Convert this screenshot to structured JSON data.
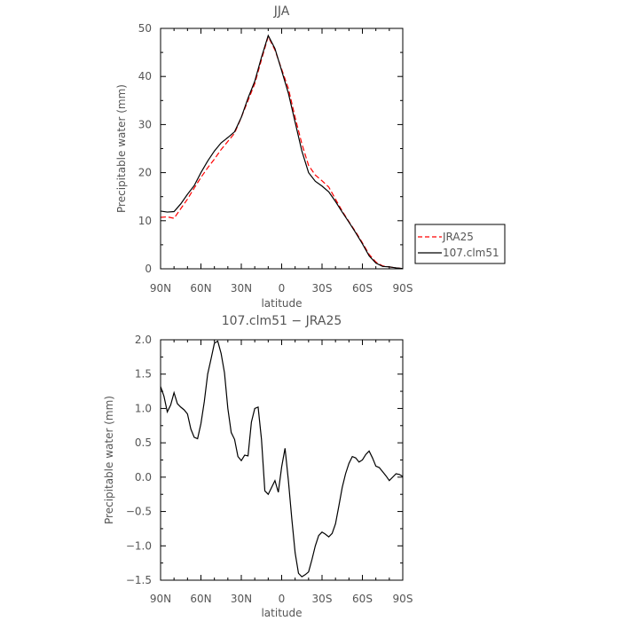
{
  "chart_data": [
    {
      "type": "line",
      "title": "JJA",
      "xlabel": "latitude",
      "ylabel": "Precipitable water (mm)",
      "xlim": [
        90,
        -90
      ],
      "ylim": [
        0,
        50
      ],
      "x_ticks": [
        90,
        60,
        30,
        0,
        -30,
        -60,
        -90
      ],
      "x_tick_labels": [
        "90N",
        "60N",
        "30N",
        "0",
        "30S",
        "60S",
        "90S"
      ],
      "y_ticks": [
        0,
        10,
        20,
        30,
        40,
        50
      ],
      "y_tick_labels": [
        "0",
        "10",
        "20",
        "30",
        "40",
        "50"
      ],
      "legend": {
        "placement": "right-outside"
      },
      "series": [
        {
          "name": "JRA25",
          "color": "#ff0000",
          "dash": "dashed",
          "x": [
            90,
            85,
            80,
            75,
            70,
            65,
            60,
            55,
            50,
            45,
            40,
            35,
            30,
            25,
            20,
            15,
            10,
            5,
            0,
            -5,
            -10,
            -15,
            -20,
            -25,
            -30,
            -35,
            -40,
            -45,
            -50,
            -55,
            -60,
            -65,
            -70,
            -75,
            -80,
            -85,
            -90
          ],
          "y": [
            10.7,
            10.8,
            10.5,
            12.5,
            14.5,
            16.8,
            19.0,
            21.0,
            22.8,
            24.8,
            26.5,
            28.2,
            31.5,
            35.0,
            38.5,
            43.5,
            48.3,
            45.5,
            41.5,
            37.5,
            31.5,
            26.0,
            21.5,
            19.5,
            18.3,
            17.0,
            14.5,
            12.0,
            9.8,
            7.7,
            5.4,
            3.0,
            1.4,
            0.6,
            0.4,
            0.2,
            0.05
          ]
        },
        {
          "name": "107.clm51",
          "color": "#000000",
          "dash": "solid",
          "x": [
            90,
            85,
            80,
            75,
            70,
            65,
            60,
            55,
            50,
            45,
            40,
            35,
            30,
            25,
            20,
            15,
            10,
            5,
            0,
            -5,
            -10,
            -15,
            -20,
            -25,
            -30,
            -35,
            -40,
            -45,
            -50,
            -55,
            -60,
            -65,
            -70,
            -75,
            -80,
            -85,
            -90
          ],
          "y": [
            12.0,
            11.8,
            11.9,
            13.5,
            15.5,
            17.3,
            20.0,
            22.4,
            24.5,
            26.2,
            27.3,
            28.5,
            31.5,
            35.5,
            39.0,
            44.0,
            48.5,
            45.8,
            41.2,
            36.5,
            30.5,
            24.5,
            20.0,
            18.2,
            17.2,
            16.0,
            14.0,
            11.8,
            9.7,
            7.5,
            5.2,
            2.7,
            1.2,
            0.5,
            0.4,
            0.2,
            0.05
          ]
        }
      ]
    },
    {
      "type": "line",
      "title": "107.clm51 − JRA25",
      "xlabel": "latitude",
      "ylabel": "Precipitable water (mm)",
      "xlim": [
        90,
        -90
      ],
      "ylim": [
        -1.5,
        2.0
      ],
      "x_ticks": [
        90,
        60,
        30,
        0,
        -30,
        -60,
        -90
      ],
      "x_tick_labels": [
        "90N",
        "60N",
        "30N",
        "0",
        "30S",
        "60S",
        "90S"
      ],
      "y_ticks": [
        -1.5,
        -1.0,
        -0.5,
        0.0,
        0.5,
        1.0,
        1.5,
        2.0
      ],
      "y_tick_labels": [
        "−1.5",
        "−1.0",
        "−0.5",
        "0.0",
        "0.5",
        "1.0",
        "1.5",
        "2.0"
      ],
      "series": [
        {
          "color": "#000000",
          "dash": "solid",
          "x": [
            90,
            87.5,
            85,
            82.5,
            80,
            77.5,
            75,
            72.5,
            70,
            67.5,
            65,
            62.5,
            60,
            57.5,
            55,
            52.5,
            50,
            47.5,
            45,
            42.5,
            40,
            37.5,
            35,
            32.5,
            30,
            27.5,
            25,
            22.5,
            20,
            17.5,
            15,
            12.5,
            10,
            7.5,
            5,
            2.5,
            0,
            -2.5,
            -5,
            -7.5,
            -10,
            -12.5,
            -15,
            -17.5,
            -20,
            -22.5,
            -25,
            -27.5,
            -30,
            -32.5,
            -35,
            -37.5,
            -40,
            -42.5,
            -45,
            -47.5,
            -50,
            -52.5,
            -55,
            -57.5,
            -60,
            -62.5,
            -65,
            -67.5,
            -70,
            -72.5,
            -75,
            -77.5,
            -80,
            -82.5,
            -85,
            -87.5,
            -90
          ],
          "y": [
            1.32,
            1.18,
            0.95,
            1.05,
            1.23,
            1.07,
            1.02,
            0.98,
            0.92,
            0.7,
            0.58,
            0.56,
            0.78,
            1.1,
            1.5,
            1.72,
            1.95,
            1.98,
            1.8,
            1.52,
            1.0,
            0.65,
            0.55,
            0.3,
            0.24,
            0.32,
            0.31,
            0.8,
            1.0,
            1.02,
            0.55,
            -0.2,
            -0.25,
            -0.15,
            -0.05,
            -0.22,
            0.15,
            0.42,
            -0.05,
            -0.6,
            -1.1,
            -1.4,
            -1.45,
            -1.42,
            -1.38,
            -1.2,
            -1.0,
            -0.85,
            -0.8,
            -0.83,
            -0.87,
            -0.82,
            -0.68,
            -0.42,
            -0.15,
            0.05,
            0.2,
            0.3,
            0.28,
            0.22,
            0.25,
            0.33,
            0.38,
            0.28,
            0.16,
            0.14,
            0.08,
            0.02,
            -0.05,
            0.0,
            0.05,
            0.04,
            0.01
          ]
        }
      ]
    }
  ]
}
